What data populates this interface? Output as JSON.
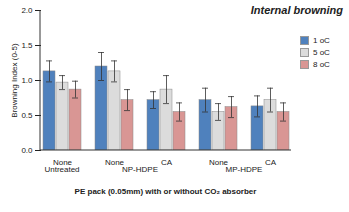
{
  "chart_data": {
    "type": "bar",
    "title": "Internal browning",
    "y_label": "Browning Index (0-5)",
    "x_label": "PE pack (0.05mm) with or without CO₂ absorber",
    "categories": [
      "None",
      "None",
      "CA",
      "None",
      "CA"
    ],
    "groups": [
      "Untreated",
      "NP-HDPE",
      "NP-HDPE",
      "MP-HDPE",
      "MP-HDPE"
    ],
    "series": [
      {
        "name": "1 oC",
        "color": "#4f81bd",
        "values": [
          1.13,
          1.2,
          0.72,
          0.72,
          0.63
        ],
        "errors": [
          0.15,
          0.2,
          0.12,
          0.17,
          0.15
        ]
      },
      {
        "name": "5 oC",
        "color": "#dcdcdc",
        "values": [
          0.97,
          1.13,
          0.87,
          0.55,
          0.72
        ],
        "errors": [
          0.1,
          0.15,
          0.2,
          0.12,
          0.17
        ]
      },
      {
        "name": "8 oC",
        "color": "#d99694",
        "values": [
          0.87,
          0.72,
          0.55,
          0.62,
          0.55
        ],
        "errors": [
          0.12,
          0.15,
          0.13,
          0.15,
          0.13
        ]
      }
    ],
    "ylim": [
      0,
      2
    ],
    "yticks": [
      {
        "value": 0,
        "label": "0.0"
      },
      0.5,
      {
        "value": 1,
        "label": "1.0"
      },
      1.5,
      {
        "value": 2,
        "label": "2.0"
      }
    ],
    "legend": "right"
  }
}
